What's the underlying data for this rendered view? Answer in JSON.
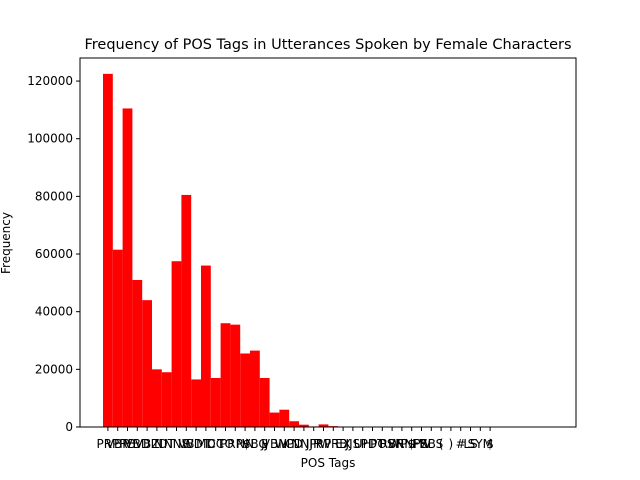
{
  "chart_data": {
    "type": "bar",
    "title": "Frequency of POS Tags in Utterances Spoken by Female Characters",
    "xlabel": "POS Tags",
    "ylabel": "Frequency",
    "ylim": [
      0,
      128000
    ],
    "yticks": [
      0,
      20000,
      40000,
      60000,
      80000,
      100000,
      120000
    ],
    "bar_color": "#ff0000",
    "grid": false,
    "categories": [
      "PRP",
      "VBP",
      "RB",
      "VBD",
      "VBZ",
      "IN",
      "DT",
      "NNS",
      "VB",
      "WDT",
      "MD",
      "CC",
      "TO",
      "PRP$",
      "NN",
      "VBG",
      "JJ",
      "VBN",
      "WP",
      "CD",
      "NNP",
      "JJR",
      "RP",
      "WRB",
      "EX",
      "JJS",
      "UH",
      "PDT",
      "POS",
      "RBR",
      "WP$",
      "NNPS",
      "FW",
      "RBS",
      "(",
      ")",
      "#",
      "LS",
      "SYM",
      "$"
    ],
    "values": [
      122500,
      61500,
      110500,
      51000,
      44000,
      20000,
      19000,
      57500,
      80500,
      16500,
      56000,
      17000,
      36000,
      35500,
      25500,
      26500,
      17000,
      5000,
      6000,
      2000,
      800,
      200,
      900,
      300,
      150,
      100,
      100,
      80,
      60,
      50,
      40,
      30,
      20,
      10,
      10,
      10,
      5,
      5,
      5,
      5
    ]
  }
}
